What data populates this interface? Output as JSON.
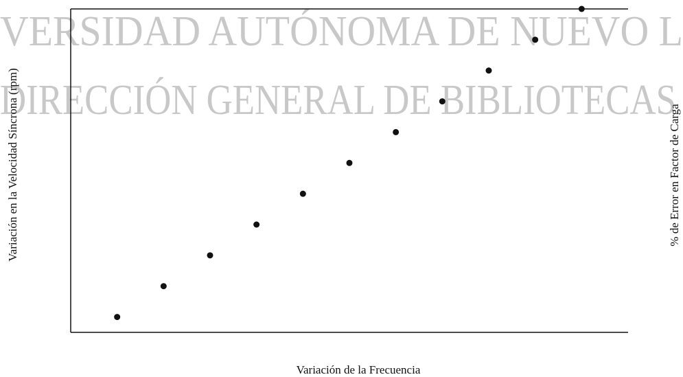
{
  "chart_data": {
    "type": "scatter",
    "xlabel": "Variación de la Frecuencia",
    "ylabel": "Variación en la Velocidad Síncrona (rpm)",
    "y2label": "% de Error en Factor de Carga",
    "annotations": [
      "VERSIDAD AUTÓNOMA DE NUEVO L",
      "DIRECCIÓN GENERAL DE BIBLIOTECAS"
    ],
    "x": [
      1,
      2,
      3,
      4,
      5,
      6,
      7,
      8,
      9,
      10,
      11
    ],
    "series": [
      {
        "color": "#111111",
        "values": [
          0.5,
          1.5,
          2.5,
          3.5,
          4.5,
          5.5,
          6.5,
          7.5,
          8.5,
          9.5,
          10.5
        ]
      }
    ],
    "xlim": [
      0,
      12
    ],
    "ylim": [
      0,
      10.5
    ]
  }
}
